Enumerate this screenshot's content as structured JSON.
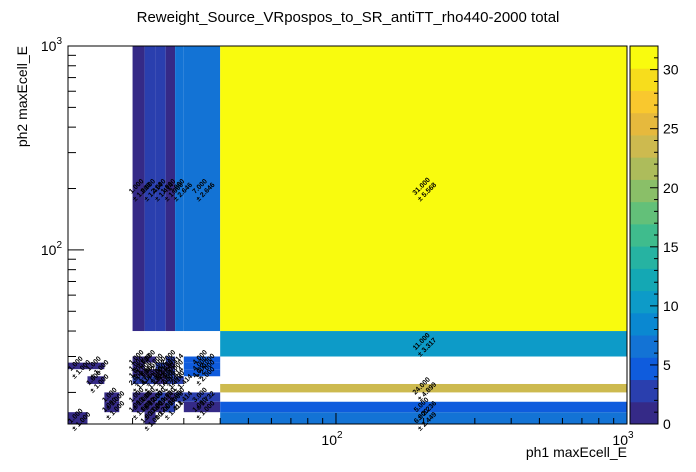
{
  "chart_data": {
    "type": "heatmap",
    "title": "Reweight_Source_VRpospos_to_SR_antiTT_rho440-2000 total",
    "xlabel": "ph1 maxEcell_E",
    "ylabel": "ph2 maxEcell_E",
    "x_scale": "log",
    "y_scale": "log",
    "xlim": [
      12,
      1000
    ],
    "ylim": [
      14,
      1000
    ],
    "zlim": [
      0,
      32
    ],
    "x_ticks": [
      {
        "value": 100,
        "base": "10",
        "exp": "2"
      },
      {
        "value": 1000,
        "base": "10",
        "exp": "3"
      }
    ],
    "y_ticks": [
      {
        "value": 100,
        "base": "10",
        "exp": "2"
      },
      {
        "value": 1000,
        "base": "10",
        "exp": "3"
      }
    ],
    "z_ticks": [
      0,
      5,
      10,
      15,
      20,
      25,
      30
    ],
    "x_bin_edges": [
      12,
      14,
      16,
      18,
      20,
      22,
      24,
      26,
      28,
      30,
      40,
      1000
    ],
    "y_bin_edges": [
      14,
      16,
      18,
      20,
      22,
      24,
      26,
      28,
      30,
      40,
      1000
    ],
    "cells": [
      {
        "x": 0,
        "y": 0,
        "value": 1,
        "label": "1.000",
        "error": "± 1.000"
      },
      {
        "x": 5,
        "y": 0,
        "value": 1,
        "label": "1.000",
        "error": "± 1.000"
      },
      {
        "x": 10,
        "y": 0,
        "value": 6,
        "label": "6.000",
        "error": "± 2.449"
      },
      {
        "x": 2,
        "y": 1,
        "value": 1,
        "label": "1.000",
        "error": "± 1.000"
      },
      {
        "x": 4,
        "y": 1,
        "value": 1,
        "label": "1.000",
        "error": "± 1.000"
      },
      {
        "x": 5,
        "y": 1,
        "value": 1,
        "label": "1.000",
        "error": "± 1.000"
      },
      {
        "x": 6,
        "y": 1,
        "value": 1,
        "label": "1.000",
        "error": "± 1.000"
      },
      {
        "x": 7,
        "y": 1,
        "value": 2,
        "label": "2.000",
        "error": "± 1.414"
      },
      {
        "x": 9,
        "y": 1,
        "value": 1,
        "label": "1.000",
        "error": "± 1.000"
      },
      {
        "x": 10,
        "y": 1,
        "value": 5,
        "label": "5.000",
        "error": "± 2.236"
      },
      {
        "x": 2,
        "y": 2,
        "value": 1,
        "label": "1.000",
        "error": "± 1.000"
      },
      {
        "x": 4,
        "y": 2,
        "value": 1,
        "label": "1.000",
        "error": "± 1.000"
      },
      {
        "x": 5,
        "y": 2,
        "value": 1,
        "label": "1.000",
        "error": "± 1.000"
      },
      {
        "x": 6,
        "y": 2,
        "value": 2,
        "label": "2.000",
        "error": "± 1.414"
      },
      {
        "x": 7,
        "y": 2,
        "value": 1,
        "label": "1.000",
        "error": "± 1.000"
      },
      {
        "x": 8,
        "y": 2,
        "value": 2,
        "label": "2.000",
        "error": "± 1.414"
      },
      {
        "x": 9,
        "y": 2,
        "value": 3,
        "label": "3.000",
        "error": "± 1.732"
      },
      {
        "x": 10,
        "y": 3,
        "value": 24,
        "label": "24.000",
        "error": "± 4.899"
      },
      {
        "x": 1,
        "y": 4,
        "value": 1,
        "label": "1.000",
        "error": "± 1.000"
      },
      {
        "x": 4,
        "y": 4,
        "value": 2,
        "label": "2.000",
        "error": "± 1.414"
      },
      {
        "x": 5,
        "y": 4,
        "value": 3,
        "label": "3.000",
        "error": "± 1.732"
      },
      {
        "x": 6,
        "y": 4,
        "value": 1,
        "label": "1.000",
        "error": "± 1.000"
      },
      {
        "x": 7,
        "y": 4,
        "value": 2,
        "label": "2.000",
        "error": "± 1.414"
      },
      {
        "x": 8,
        "y": 4,
        "value": 2,
        "label": "2.000",
        "error": "± 1.414"
      },
      {
        "x": 4,
        "y": 5,
        "value": 1,
        "label": "1.000",
        "error": "± 1.000"
      },
      {
        "x": 5,
        "y": 5,
        "value": 1,
        "label": "1.000",
        "error": "± 1.000"
      },
      {
        "x": 6,
        "y": 5,
        "value": 1,
        "label": "1.000",
        "error": "± 1.000"
      },
      {
        "x": 7,
        "y": 5,
        "value": 2,
        "label": "2.000",
        "error": "± 1.414"
      },
      {
        "x": 9,
        "y": 5,
        "value": 4,
        "label": "4.000",
        "error": "± 2.000"
      },
      {
        "x": 0,
        "y": 6,
        "value": 1,
        "label": "1.000",
        "error": "± 1.000"
      },
      {
        "x": 1,
        "y": 6,
        "value": 1,
        "label": "1.000",
        "error": "± 1.000"
      },
      {
        "x": 4,
        "y": 6,
        "value": 1,
        "label": "1.000",
        "error": "± 1.000"
      },
      {
        "x": 6,
        "y": 6,
        "value": 2,
        "label": "2.000",
        "error": "± 1.414"
      },
      {
        "x": 7,
        "y": 6,
        "value": 1,
        "label": "1.000",
        "error": "± 1.000"
      },
      {
        "x": 9,
        "y": 6,
        "value": 4,
        "label": "4.000",
        "error": "± 2.000"
      },
      {
        "x": 4,
        "y": 7,
        "value": 1,
        "label": "1.000",
        "error": "± 1.000"
      },
      {
        "x": 5,
        "y": 7,
        "value": 1,
        "label": "1.000",
        "error": "± 1.000"
      },
      {
        "x": 7,
        "y": 7,
        "value": 2,
        "label": "2.000",
        "error": "± 1.414"
      },
      {
        "x": 9,
        "y": 7,
        "value": 4,
        "label": "4.000",
        "error": "± 2.000"
      },
      {
        "x": 10,
        "y": 8,
        "value": 11,
        "label": "11.000",
        "error": "± 3.317"
      },
      {
        "x": 4,
        "y": 9,
        "value": 1,
        "label": "1.000",
        "error": "± 1.000"
      },
      {
        "x": 5,
        "y": 9,
        "value": 2,
        "label": "2.000",
        "error": "± 1.414"
      },
      {
        "x": 6,
        "y": 9,
        "value": 2,
        "label": "2.000",
        "error": "± 1.414"
      },
      {
        "x": 7,
        "y": 9,
        "value": 1,
        "label": "1.000",
        "error": "± 1.000"
      },
      {
        "x": 8,
        "y": 9,
        "value": 7,
        "label": "7.000",
        "error": "± 2.646"
      },
      {
        "x": 9,
        "y": 9,
        "value": 7,
        "label": "7.000",
        "error": "± 2.646"
      },
      {
        "x": 10,
        "y": 9,
        "value": 31,
        "label": "31.000",
        "error": "± 5.568"
      }
    ]
  }
}
